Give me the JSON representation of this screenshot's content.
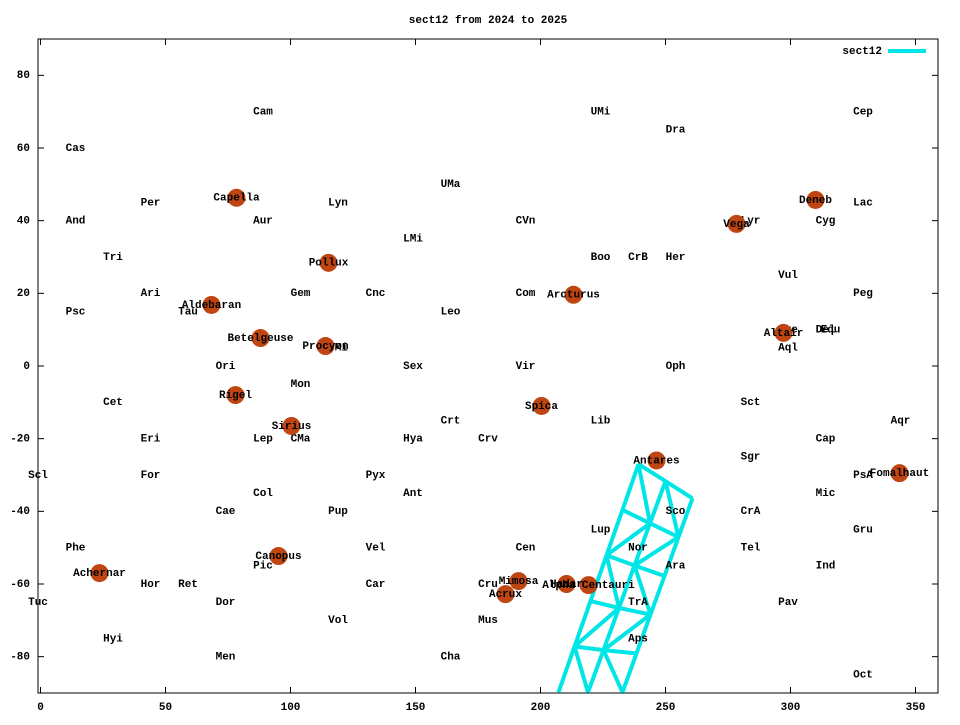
{
  "chart_data": {
    "type": "scatter",
    "title": "sect12 from 2024 to 2025",
    "xlim": [
      -1,
      359
    ],
    "ylim": [
      -90,
      90
    ],
    "xticks": [
      0,
      50,
      100,
      150,
      200,
      250,
      300,
      350
    ],
    "yticks": [
      -80,
      -60,
      -40,
      -20,
      0,
      20,
      40,
      60,
      80
    ],
    "legend": "top right",
    "labels": {
      "text": [
        "Cam",
        "UMi",
        "Cep",
        "Dra",
        "Cas",
        "UMa",
        "Per",
        "Lyn",
        "Lac",
        "And",
        "Aur",
        "CVn",
        "Cyg",
        "Lyr",
        "LMi",
        "Tri",
        "Boo",
        "CrB",
        "Her",
        "Vul",
        "Ari",
        "Gem",
        "Cnc",
        "Com",
        "Peg",
        "Psc",
        "Tau",
        "Leo",
        "Sge",
        "Del",
        "Equ",
        "Aql",
        "CMi",
        "Ori",
        "Sex",
        "Vir",
        "Oph",
        "Mon",
        "Cet",
        "Sct",
        "Crt",
        "Lib",
        "Aqr",
        "Eri",
        "Lep",
        "CMa",
        "Hya",
        "Crv",
        "Cap",
        "Sgr",
        "Scl",
        "For",
        "Pyx",
        "PsA",
        "Col",
        "Ant",
        "Mic",
        "Cae",
        "Pup",
        "Sco",
        "CrA",
        "Lup",
        "Gru",
        "Phe",
        "Vel",
        "Cen",
        "Nor",
        "Tel",
        "Pic",
        "Ara",
        "Ind",
        "Hor",
        "Ret",
        "Car",
        "Cru",
        "Tuc",
        "Dor",
        "TrA",
        "Pav",
        "Vol",
        "Mus",
        "Hyi",
        "Aps",
        "Men",
        "Cha",
        "Oct"
      ],
      "x": [
        89,
        224,
        329,
        254,
        14,
        164,
        44,
        119,
        329,
        14,
        89,
        194,
        314,
        284,
        149,
        29,
        224,
        239,
        254,
        299,
        44,
        104,
        134,
        194,
        329,
        14,
        59,
        164,
        299,
        314,
        316,
        299,
        119,
        74,
        149,
        194,
        254,
        104,
        29,
        284,
        164,
        224,
        344,
        44,
        89,
        104,
        149,
        179,
        314,
        284,
        -1,
        44,
        134,
        329,
        89,
        149,
        314,
        74,
        119,
        254,
        284,
        224,
        329,
        14,
        134,
        194,
        239,
        284,
        89,
        254,
        314,
        44,
        59,
        134,
        179,
        -1,
        74,
        239,
        299,
        119,
        179,
        29,
        239,
        74,
        164,
        329
      ],
      "y": [
        70,
        70,
        70,
        65,
        60,
        50,
        45,
        45,
        45,
        40,
        40,
        40,
        40,
        40,
        35,
        30,
        30,
        30,
        30,
        25,
        20,
        20,
        20,
        20,
        20,
        15,
        15,
        15,
        10,
        10,
        10,
        5,
        5,
        0,
        0,
        0,
        0,
        -5,
        -10,
        -10,
        -15,
        -15,
        -15,
        -20,
        -20,
        -20,
        -20,
        -20,
        -20,
        -25,
        -30,
        -30,
        -30,
        -30,
        -35,
        -35,
        -35,
        -40,
        -40,
        -40,
        -40,
        -45,
        -45,
        -50,
        -50,
        -50,
        -50,
        -50,
        -55,
        -55,
        -55,
        -60,
        -60,
        -60,
        -60,
        -65,
        -65,
        -65,
        -65,
        -70,
        -70,
        -75,
        -75,
        -80,
        -80,
        -85
      ]
    },
    "stars": {
      "color": "#bf4513",
      "names": [
        "Capella",
        "Achernar",
        "Deneb",
        "Vega",
        "Pollux",
        "Arcturus",
        "Aldebaran",
        "Altair",
        "Betelgeuse",
        "Procyon",
        "Rigel",
        "Sirius",
        "Spica",
        "Antares",
        "Fomalhaut",
        "Canopus",
        "Mimosa",
        "Acrux",
        "Hadar",
        "Alpha Centauri"
      ],
      "x": [
        78.4,
        23.6,
        310,
        278.4,
        115.2,
        213.2,
        68.4,
        297.2,
        88,
        114,
        78,
        100.4,
        200.4,
        246.4,
        343.6,
        95.2,
        191.2,
        186,
        210.4,
        219.2
      ],
      "y": [
        46.3,
        -57,
        45.7,
        39.1,
        28.4,
        19.6,
        16.8,
        9.1,
        7.7,
        5.5,
        -8,
        -16.5,
        -11,
        -26,
        -29.5,
        -52.3,
        -59.2,
        -62.8,
        -60,
        -60.3
      ]
    },
    "series": [
      {
        "name": "sect12",
        "color": "#00e5e5",
        "x": [
          239.2,
          232.8,
          226.4,
          220,
          213.6,
          207.2,
          null,
          250,
          243.8,
          237.6,
          231.4,
          225.2,
          219,
          null,
          260.8,
          255.2,
          249.6,
          244,
          238.4,
          232.8,
          null,
          239.2,
          250,
          260.8,
          null,
          232.8,
          243.8,
          255.2,
          null,
          226.4,
          237.6,
          249.6,
          null,
          220,
          231.4,
          244,
          null,
          213.6,
          225.2,
          238.4,
          null,
          239.2,
          243.8,
          226.4,
          231.4,
          213.6,
          219,
          null,
          250,
          255.2,
          237.6,
          244,
          225.2,
          232.8
        ],
        "y": [
          -27,
          -39.6,
          -52.1,
          -64.7,
          -77.2,
          -89.8,
          null,
          -31.7,
          -43.3,
          -54.9,
          -66.6,
          -78.2,
          -89.8,
          null,
          -36.4,
          -47.1,
          -57.8,
          -68.4,
          -79.1,
          -89.8,
          null,
          -27,
          -31.7,
          -36.4,
          null,
          -39.6,
          -43.3,
          -47.1,
          null,
          -52.1,
          -54.9,
          -57.8,
          null,
          -64.7,
          -66.6,
          -68.4,
          null,
          -77.2,
          -78.2,
          -79.1,
          null,
          -27,
          -43.3,
          -52.1,
          -66.6,
          -77.2,
          -89.8,
          null,
          -31.7,
          -47.1,
          -54.9,
          -68.4,
          -78.2,
          -89.8
        ]
      }
    ]
  }
}
